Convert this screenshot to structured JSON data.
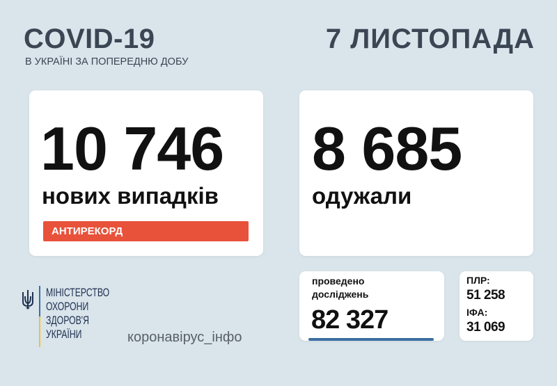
{
  "header": {
    "title": "COVID-19",
    "subtitle": "В УКРАЇНІ ЗА ПОПЕРЕДНЮ ДОБУ",
    "date": "7 ЛИСТОПАДА"
  },
  "new_cases": {
    "value": "10 746",
    "label": "нових випадків",
    "badge": "АНТИРЕКОРД"
  },
  "recovered": {
    "value": "8 685",
    "label": "одужали"
  },
  "tests": {
    "label_line1": "проведено",
    "label_line2": "досліджень",
    "value": "82 327"
  },
  "breakdown": {
    "plr_label": "ПЛР:",
    "plr_value": "51 258",
    "ifa_label": "ІФА:",
    "ifa_value": "31 069"
  },
  "footer": {
    "ministry": [
      "МІНІСТЕРСТВО",
      "ОХОРОНИ",
      "ЗДОРОВ'Я",
      "УКРАЇНИ"
    ],
    "site": "коронавірус_інфо"
  },
  "colors": {
    "background": "#d9e4eb",
    "badge": "#e8523a",
    "accent_blue": "#3d6fa3",
    "flag_yellow": "#f2c230"
  },
  "icons": {
    "emblem": "trident-icon"
  }
}
